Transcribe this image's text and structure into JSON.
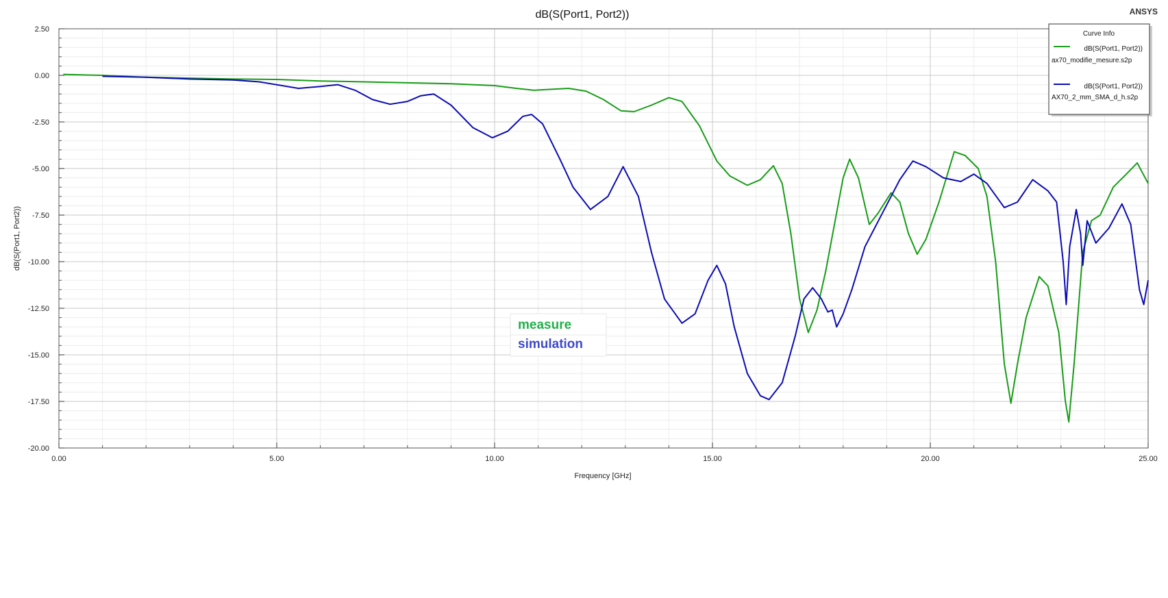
{
  "brand": "ANSYS",
  "chart_data": {
    "type": "line",
    "title": "dB(S(Port1, Port2))",
    "xlabel": "Frequency [GHz]",
    "ylabel": "dB(S(Port1, Port2))",
    "xlim": [
      0,
      25
    ],
    "ylim": [
      -20,
      2.5
    ],
    "x_ticks": [
      0,
      5,
      10,
      15,
      20,
      25
    ],
    "x_tick_labels": [
      "0.00",
      "5.00",
      "10.00",
      "15.00",
      "20.00",
      "25.00"
    ],
    "y_ticks": [
      2.5,
      0,
      -2.5,
      -5,
      -7.5,
      -10,
      -12.5,
      -15,
      -17.5,
      -20
    ],
    "y_tick_labels": [
      "2.50",
      "0.00",
      "-2.50",
      "-5.00",
      "-7.50",
      "-10.00",
      "-12.50",
      "-15.00",
      "-17.50",
      "-20.00"
    ],
    "grid": true,
    "legend": {
      "title": "Curve Info",
      "position": "top-right",
      "entries": [
        {
          "name": "dB(S(Port1, Port2))",
          "source": "ax70_modifie_mesure.s2p",
          "color": "#169c16"
        },
        {
          "name": "dB(S(Port1, Port2))",
          "source": "AX70_2_mm_SMA_d_h.s2p",
          "color": "#0a0ab4"
        }
      ]
    },
    "annotations": [
      {
        "text": "measure",
        "color": "#22b04b"
      },
      {
        "text": "simulation",
        "color": "#3e48cc"
      }
    ],
    "series": [
      {
        "color": "#169c16",
        "points": [
          [
            0.1,
            0.05
          ],
          [
            1,
            0.0
          ],
          [
            2,
            -0.1
          ],
          [
            3,
            -0.15
          ],
          [
            4,
            -0.2
          ],
          [
            5,
            -0.22
          ],
          [
            6,
            -0.3
          ],
          [
            7,
            -0.35
          ],
          [
            8,
            -0.4
          ],
          [
            9,
            -0.45
          ],
          [
            10,
            -0.55
          ],
          [
            10.5,
            -0.7
          ],
          [
            10.9,
            -0.8
          ],
          [
            11.3,
            -0.75
          ],
          [
            11.7,
            -0.7
          ],
          [
            12.1,
            -0.85
          ],
          [
            12.5,
            -1.3
          ],
          [
            12.9,
            -1.9
          ],
          [
            13.2,
            -1.95
          ],
          [
            13.6,
            -1.6
          ],
          [
            14.0,
            -1.2
          ],
          [
            14.3,
            -1.4
          ],
          [
            14.7,
            -2.7
          ],
          [
            15.1,
            -4.6
          ],
          [
            15.4,
            -5.4
          ],
          [
            15.8,
            -5.9
          ],
          [
            16.1,
            -5.6
          ],
          [
            16.4,
            -4.85
          ],
          [
            16.6,
            -5.8
          ],
          [
            16.8,
            -8.5
          ],
          [
            17.0,
            -12.0
          ],
          [
            17.2,
            -13.8
          ],
          [
            17.4,
            -12.6
          ],
          [
            17.6,
            -10.5
          ],
          [
            17.8,
            -8.0
          ],
          [
            18.0,
            -5.5
          ],
          [
            18.15,
            -4.5
          ],
          [
            18.35,
            -5.5
          ],
          [
            18.6,
            -8.0
          ],
          [
            18.8,
            -7.4
          ],
          [
            19.1,
            -6.3
          ],
          [
            19.3,
            -6.8
          ],
          [
            19.5,
            -8.5
          ],
          [
            19.7,
            -9.6
          ],
          [
            19.9,
            -8.8
          ],
          [
            20.2,
            -6.8
          ],
          [
            20.55,
            -4.1
          ],
          [
            20.8,
            -4.3
          ],
          [
            21.1,
            -5.0
          ],
          [
            21.3,
            -6.5
          ],
          [
            21.5,
            -10.0
          ],
          [
            21.7,
            -15.5
          ],
          [
            21.85,
            -17.6
          ],
          [
            22.0,
            -15.5
          ],
          [
            22.2,
            -13.0
          ],
          [
            22.5,
            -10.8
          ],
          [
            22.7,
            -11.3
          ],
          [
            22.95,
            -13.8
          ],
          [
            23.1,
            -17.5
          ],
          [
            23.18,
            -18.6
          ],
          [
            23.3,
            -15.5
          ],
          [
            23.5,
            -9.5
          ],
          [
            23.7,
            -7.8
          ],
          [
            23.9,
            -7.5
          ],
          [
            24.2,
            -6.0
          ],
          [
            24.5,
            -5.3
          ],
          [
            24.75,
            -4.7
          ],
          [
            25.0,
            -5.8
          ]
        ]
      },
      {
        "color": "#0a0ab4",
        "points": [
          [
            1,
            -0.05
          ],
          [
            2,
            -0.1
          ],
          [
            3,
            -0.2
          ],
          [
            4,
            -0.25
          ],
          [
            4.6,
            -0.35
          ],
          [
            5.5,
            -0.7
          ],
          [
            6.0,
            -0.6
          ],
          [
            6.4,
            -0.5
          ],
          [
            6.8,
            -0.8
          ],
          [
            7.2,
            -1.3
          ],
          [
            7.6,
            -1.55
          ],
          [
            8.0,
            -1.4
          ],
          [
            8.3,
            -1.1
          ],
          [
            8.6,
            -1.0
          ],
          [
            9.0,
            -1.6
          ],
          [
            9.5,
            -2.8
          ],
          [
            9.95,
            -3.35
          ],
          [
            10.3,
            -3.0
          ],
          [
            10.65,
            -2.2
          ],
          [
            10.85,
            -2.1
          ],
          [
            11.1,
            -2.6
          ],
          [
            11.5,
            -4.5
          ],
          [
            11.8,
            -6.0
          ],
          [
            12.2,
            -7.2
          ],
          [
            12.6,
            -6.5
          ],
          [
            12.95,
            -4.9
          ],
          [
            13.3,
            -6.5
          ],
          [
            13.6,
            -9.5
          ],
          [
            13.9,
            -12.0
          ],
          [
            14.3,
            -13.3
          ],
          [
            14.6,
            -12.8
          ],
          [
            14.9,
            -11.0
          ],
          [
            15.1,
            -10.2
          ],
          [
            15.3,
            -11.2
          ],
          [
            15.5,
            -13.5
          ],
          [
            15.8,
            -16.0
          ],
          [
            16.1,
            -17.2
          ],
          [
            16.3,
            -17.4
          ],
          [
            16.6,
            -16.5
          ],
          [
            16.9,
            -14.0
          ],
          [
            17.1,
            -12.0
          ],
          [
            17.3,
            -11.4
          ],
          [
            17.5,
            -12.0
          ],
          [
            17.65,
            -12.7
          ],
          [
            17.75,
            -12.6
          ],
          [
            17.85,
            -13.5
          ],
          [
            18.0,
            -12.8
          ],
          [
            18.2,
            -11.5
          ],
          [
            18.5,
            -9.2
          ],
          [
            18.9,
            -7.4
          ],
          [
            19.3,
            -5.6
          ],
          [
            19.6,
            -4.6
          ],
          [
            19.9,
            -4.9
          ],
          [
            20.3,
            -5.5
          ],
          [
            20.7,
            -5.7
          ],
          [
            21.0,
            -5.3
          ],
          [
            21.3,
            -5.8
          ],
          [
            21.7,
            -7.1
          ],
          [
            22.0,
            -6.8
          ],
          [
            22.35,
            -5.6
          ],
          [
            22.7,
            -6.2
          ],
          [
            22.9,
            -6.8
          ],
          [
            23.05,
            -10.0
          ],
          [
            23.12,
            -12.3
          ],
          [
            23.2,
            -9.2
          ],
          [
            23.35,
            -7.2
          ],
          [
            23.45,
            -8.5
          ],
          [
            23.5,
            -10.2
          ],
          [
            23.6,
            -7.8
          ],
          [
            23.8,
            -9.0
          ],
          [
            24.1,
            -8.2
          ],
          [
            24.4,
            -6.9
          ],
          [
            24.6,
            -8.0
          ],
          [
            24.8,
            -11.5
          ],
          [
            24.9,
            -12.3
          ],
          [
            25.0,
            -11.0
          ]
        ]
      }
    ]
  }
}
